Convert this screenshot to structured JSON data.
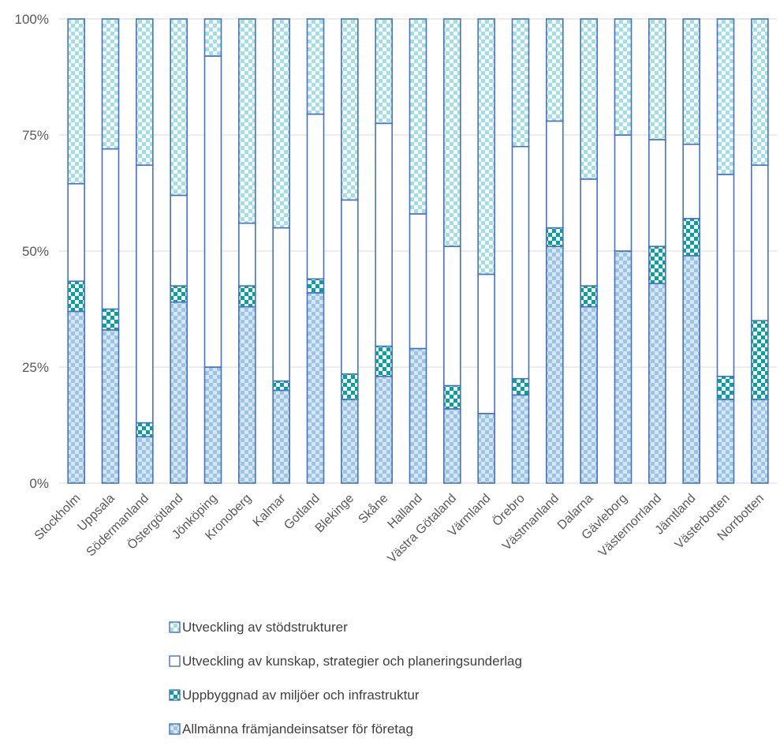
{
  "chart_data": {
    "type": "bar",
    "stacked": true,
    "percent": true,
    "categories": [
      "Stockholm",
      "Uppsala",
      "Södermanland",
      "Östergötland",
      "Jönköping",
      "Kronoberg",
      "Kalmar",
      "Gotland",
      "Blekinge",
      "Skåne",
      "Halland",
      "Västra Götaland",
      "Värmland",
      "Örebro",
      "Västmanland",
      "Dalarna",
      "Gävleborg",
      "Västernorrland",
      "Jämtland",
      "Västerbotten",
      "Norrbotten"
    ],
    "ylim": [
      0,
      100
    ],
    "yticks": [
      "0%",
      "25%",
      "50%",
      "75%",
      "100%"
    ],
    "legend_position": "bottom",
    "grid": true,
    "series": [
      {
        "name": "Allmänna främjandeinsatser för företag",
        "values": [
          37,
          33,
          10,
          39,
          25,
          38,
          20,
          41,
          18,
          23,
          29,
          16,
          15,
          19,
          51,
          38,
          50,
          43,
          49,
          18,
          18
        ],
        "color": "#9dc3e6",
        "pattern": "checker"
      },
      {
        "name": "Uppbyggnad av miljöer och infrastruktur",
        "values": [
          6.5,
          4.5,
          3,
          3.5,
          0,
          4.5,
          2,
          3,
          5.5,
          6.5,
          0,
          5,
          0,
          3.5,
          4,
          4.5,
          0,
          8,
          8,
          5,
          17
        ],
        "color": "#00a3a3",
        "pattern": "checker-dark"
      },
      {
        "name": "Utveckling av kunskap, strategier och planeringsunderlag",
        "values": [
          21,
          34.5,
          55.5,
          19.5,
          67,
          13.5,
          33,
          35.5,
          37.5,
          48,
          29,
          30,
          30,
          50,
          23,
          23,
          25,
          23,
          16,
          43.5,
          33.5
        ],
        "color": "#ffffff",
        "pattern": "solid"
      },
      {
        "name": "Utveckling av stödstrukturer",
        "values": [
          35.5,
          28,
          31.5,
          38,
          8,
          44,
          45,
          20.5,
          39,
          22.5,
          42,
          49,
          55,
          27.5,
          22,
          34.5,
          25,
          26,
          27,
          33.5,
          31.5
        ],
        "color": "#9fdfe8",
        "pattern": "checker"
      }
    ],
    "legend_order": [
      "Utveckling av stödstrukturer",
      "Utveckling av kunskap, strategier och planeringsunderlag",
      "Uppbyggnad av miljöer och infrastruktur",
      "Allmänna främjandeinsatser för företag"
    ]
  }
}
